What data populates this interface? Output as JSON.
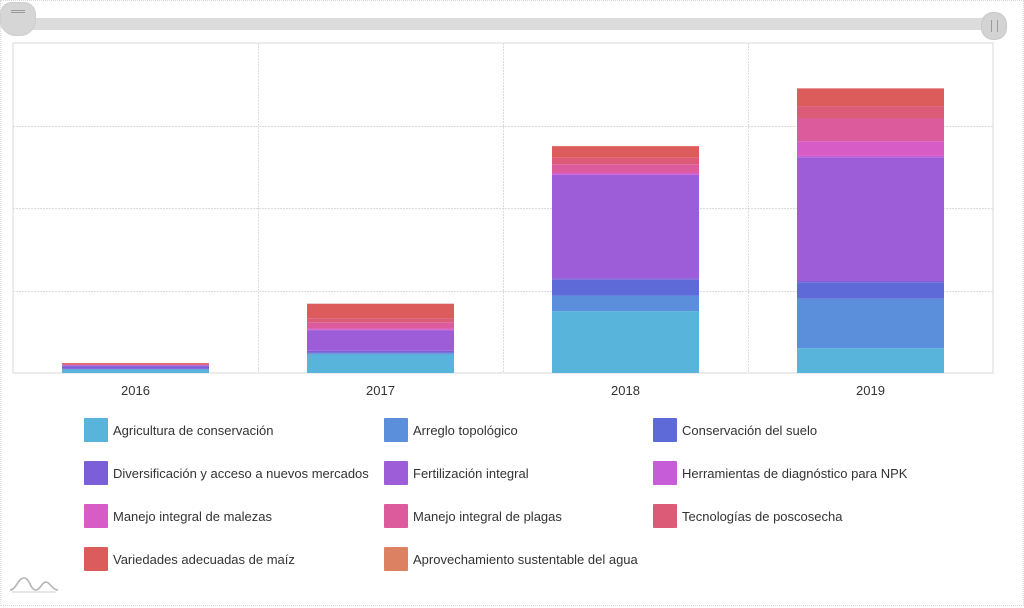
{
  "chart_data": {
    "type": "bar",
    "stacked": true,
    "categories": [
      "2016",
      "2017",
      "2018",
      "2019"
    ],
    "ylim": [
      0,
      80
    ],
    "grid": true,
    "legend_position": "bottom",
    "series": [
      {
        "name": "Agricultura de conservación",
        "color": "#58b4da",
        "values": [
          0.8,
          4.5,
          15,
          6
        ]
      },
      {
        "name": "Arreglo topológico",
        "color": "#5b8fdc",
        "values": [
          0.2,
          0.3,
          3.8,
          12
        ]
      },
      {
        "name": "Conservación del suelo",
        "color": "#5f6ad9",
        "values": [
          0,
          0.2,
          3.8,
          4
        ]
      },
      {
        "name": "Diversificación y acceso a nuevos mercados",
        "color": "#7b5fd8",
        "values": [
          0.6,
          0.4,
          0.4,
          0.3
        ]
      },
      {
        "name": "Fertilización integral",
        "color": "#9e5dd8",
        "values": [
          0.3,
          5,
          25,
          30
        ]
      },
      {
        "name": "Herramientas de diagnóstico para NPK",
        "color": "#c65cd8",
        "values": [
          0,
          0.1,
          0.2,
          0.4
        ]
      },
      {
        "name": "Manejo integral de malezas",
        "color": "#d85cc6",
        "values": [
          0,
          0.3,
          0.4,
          3.5
        ]
      },
      {
        "name": "Manejo integral de plagas",
        "color": "#dc5b9c",
        "values": [
          0.2,
          1.5,
          2,
          5.5
        ]
      },
      {
        "name": "Tecnologías de poscosecha",
        "color": "#dc5c78",
        "values": [
          0,
          1,
          1.6,
          3
        ]
      },
      {
        "name": "Variedades adecuadas de maíz",
        "color": "#dc5c5c",
        "values": [
          0.3,
          3.5,
          2.8,
          4.3
        ]
      },
      {
        "name": "Aprovechamiento sustentable del agua",
        "color": "#dc8262",
        "values": [
          0,
          0,
          0,
          0
        ]
      }
    ]
  }
}
